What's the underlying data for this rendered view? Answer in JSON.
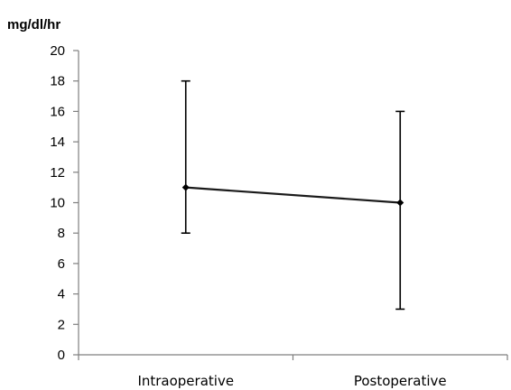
{
  "chart_data": {
    "type": "line",
    "ylabel": "mg/dl/hr",
    "categories": [
      "Intraoperative",
      "Postoperative"
    ],
    "series": [
      {
        "values": [
          11,
          10
        ],
        "error_low": [
          8,
          3
        ],
        "error_high": [
          18,
          16
        ]
      }
    ],
    "ylim": [
      0,
      20
    ],
    "yticks": [
      0,
      2,
      4,
      6,
      8,
      10,
      12,
      14,
      16,
      18,
      20
    ],
    "grid": false,
    "legend": "none",
    "colors": {
      "line": "#1a1a1a",
      "axis": "#7f7f7f",
      "error_bar": "#000000",
      "marker": "#000000"
    }
  }
}
